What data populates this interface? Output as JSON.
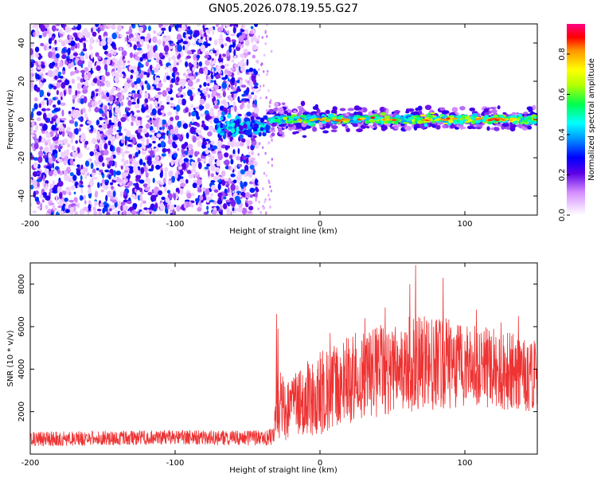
{
  "figure": {
    "title": "GN05.2026.078.19.55.G27"
  },
  "chart_data": [
    {
      "type": "heatmap",
      "title": "GN05.2026.078.19.55.G27",
      "xlabel": "Height of straight line (km)",
      "ylabel": "Frequency (Hz)",
      "xlim": [
        -200,
        150
      ],
      "ylim": [
        -50,
        50
      ],
      "xticks": [
        {
          "v": -200,
          "label": "-200"
        },
        {
          "v": -100,
          "label": "-100"
        },
        {
          "v": 0,
          "label": "0"
        },
        {
          "v": 100,
          "label": "100"
        }
      ],
      "yticks": [
        {
          "v": -40,
          "label": "-40"
        },
        {
          "v": -20,
          "label": "-20"
        },
        {
          "v": 0,
          "label": "0"
        },
        {
          "v": 20,
          "label": "20"
        },
        {
          "v": 40,
          "label": "40"
        }
      ],
      "noise_region": {
        "x_from": -200,
        "x_to": -43,
        "amplitude_range": [
          0.0,
          0.35
        ]
      },
      "transition_region": {
        "x_from": -72,
        "x_to": -35,
        "freq_center": -4,
        "amplitude_range": [
          0.2,
          0.5
        ]
      },
      "signal_ridge": {
        "x_from": -35,
        "x_to": 150,
        "freq_center": 0,
        "freq_halfwidth": 4,
        "peak_amplitude": 0.9
      },
      "colorbar": {
        "label": "Normalized spectral amplitude",
        "range": [
          0.0,
          0.95
        ],
        "ticks": [
          {
            "v": 0.0,
            "label": "0.0"
          },
          {
            "v": 0.2,
            "label": "0.2"
          },
          {
            "v": 0.4,
            "label": "0.4"
          },
          {
            "v": 0.6,
            "label": "0.6"
          },
          {
            "v": 0.8,
            "label": "0.8"
          }
        ]
      }
    },
    {
      "type": "line",
      "xlabel": "Height of straight line (km)",
      "ylabel": "SNR (10 * v/v)",
      "xlim": [
        -200,
        150
      ],
      "ylim": [
        0,
        9000
      ],
      "xticks": [
        {
          "v": -200,
          "label": "-200"
        },
        {
          "v": -100,
          "label": "-100"
        },
        {
          "v": 0,
          "label": "0"
        },
        {
          "v": 100,
          "label": "100"
        }
      ],
      "yticks": [
        {
          "v": 2000,
          "label": "2000"
        },
        {
          "v": 4000,
          "label": "4000"
        },
        {
          "v": 6000,
          "label": "6000"
        },
        {
          "v": 8000,
          "label": "8000"
        }
      ],
      "series": [
        {
          "name": "SNR",
          "color": "#ee3333",
          "envelope": {
            "x": [
              -200,
              -150,
              -100,
              -50,
              -32,
              -30,
              -25,
              -20,
              -10,
              0,
              10,
              20,
              40,
              60,
              80,
              100,
              120,
              150
            ],
            "mean": [
              700,
              750,
              800,
              750,
              800,
              2500,
              2000,
              2200,
              2600,
              2900,
              3200,
              3500,
              3900,
              4200,
              4300,
              4200,
              4000,
              3700
            ],
            "spread": [
              350,
              350,
              350,
              350,
              400,
              2000,
              1500,
              1500,
              1800,
              2000,
              2000,
              2100,
              2200,
              2300,
              2200,
              2000,
              1900,
              1700
            ]
          },
          "peaks": [
            {
              "x": -30,
              "y": 6600
            },
            {
              "x": -29,
              "y": 5900
            },
            {
              "x": 7,
              "y": 5700
            },
            {
              "x": 31,
              "y": 6400
            },
            {
              "x": 45,
              "y": 6900
            },
            {
              "x": 62,
              "y": 8000
            },
            {
              "x": 66,
              "y": 8900
            },
            {
              "x": 85,
              "y": 8300
            },
            {
              "x": 108,
              "y": 6800
            },
            {
              "x": 125,
              "y": 6200
            },
            {
              "x": 137,
              "y": 6500
            }
          ]
        }
      ]
    }
  ]
}
